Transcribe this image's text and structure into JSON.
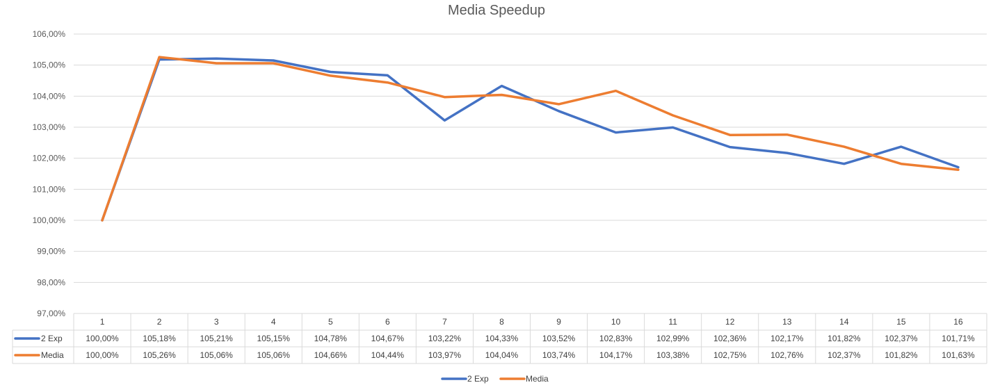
{
  "chart_data": {
    "type": "line",
    "title": "Media Speedup",
    "categories": [
      "1",
      "2",
      "3",
      "4",
      "5",
      "6",
      "7",
      "8",
      "9",
      "10",
      "11",
      "12",
      "13",
      "14",
      "15",
      "16"
    ],
    "ylim": [
      97,
      106
    ],
    "yticks": [
      "97,00%",
      "98,00%",
      "99,00%",
      "100,00%",
      "101,00%",
      "102,00%",
      "103,00%",
      "104,00%",
      "105,00%",
      "106,00%"
    ],
    "grid": true,
    "legend_position": "bottom",
    "data_table": true,
    "series": [
      {
        "name": "2 Exp",
        "color": "#4472C4",
        "values": [
          100.0,
          105.18,
          105.21,
          105.15,
          104.78,
          104.67,
          103.22,
          104.33,
          103.52,
          102.83,
          102.99,
          102.36,
          102.17,
          101.82,
          102.37,
          101.71
        ],
        "labels": [
          "100,00%",
          "105,18%",
          "105,21%",
          "105,15%",
          "104,78%",
          "104,67%",
          "103,22%",
          "104,33%",
          "103,52%",
          "102,83%",
          "102,99%",
          "102,36%",
          "102,17%",
          "101,82%",
          "102,37%",
          "101,71%"
        ]
      },
      {
        "name": "Media",
        "color": "#ED7D31",
        "values": [
          100.0,
          105.26,
          105.06,
          105.06,
          104.66,
          104.44,
          103.97,
          104.04,
          103.74,
          104.17,
          103.38,
          102.75,
          102.76,
          102.37,
          101.82,
          101.63
        ],
        "labels": [
          "100,00%",
          "105,26%",
          "105,06%",
          "105,06%",
          "104,66%",
          "104,44%",
          "103,97%",
          "104,04%",
          "103,74%",
          "104,17%",
          "103,38%",
          "102,75%",
          "102,76%",
          "102,37%",
          "101,82%",
          "101,63%"
        ]
      }
    ]
  }
}
